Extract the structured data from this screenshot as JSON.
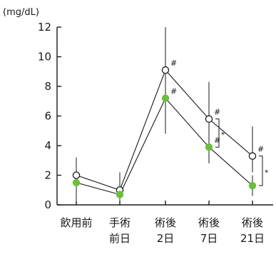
{
  "chart_data": {
    "type": "line",
    "ylabel": "(mg/dL)",
    "ylim": [
      0,
      12
    ],
    "yticks": [
      0,
      2,
      4,
      6,
      8,
      10,
      12
    ],
    "categories": [
      [
        "飲用前"
      ],
      [
        "手術",
        "前日"
      ],
      [
        "術後",
        "2日"
      ],
      [
        "術後",
        "7日"
      ],
      [
        "術後",
        "21日"
      ]
    ],
    "series": [
      {
        "marker": "open",
        "color": "#1a1a1a",
        "values": [
          2.0,
          1.0,
          9.1,
          5.8,
          3.3
        ],
        "err_low": [
          1.2,
          0.4,
          6.0,
          3.6,
          2.2
        ],
        "err_high": [
          3.2,
          2.2,
          12.0,
          8.3,
          5.3
        ],
        "markers": [
          "",
          "",
          "#",
          "#",
          "#"
        ]
      },
      {
        "marker": "filled",
        "color": "#6cbf3e",
        "values": [
          1.5,
          0.7,
          7.2,
          3.9,
          1.3
        ],
        "err_low": [
          0.3,
          0.3,
          4.8,
          2.8,
          0.6
        ],
        "err_high": [
          2.6,
          1.1,
          9.2,
          5.0,
          2.0
        ],
        "markers": [
          "",
          "",
          "#",
          "#",
          ""
        ]
      }
    ],
    "brackets": [
      {
        "category": 3,
        "label": "*"
      },
      {
        "category": 4,
        "label": "*"
      }
    ],
    "grid": false
  }
}
